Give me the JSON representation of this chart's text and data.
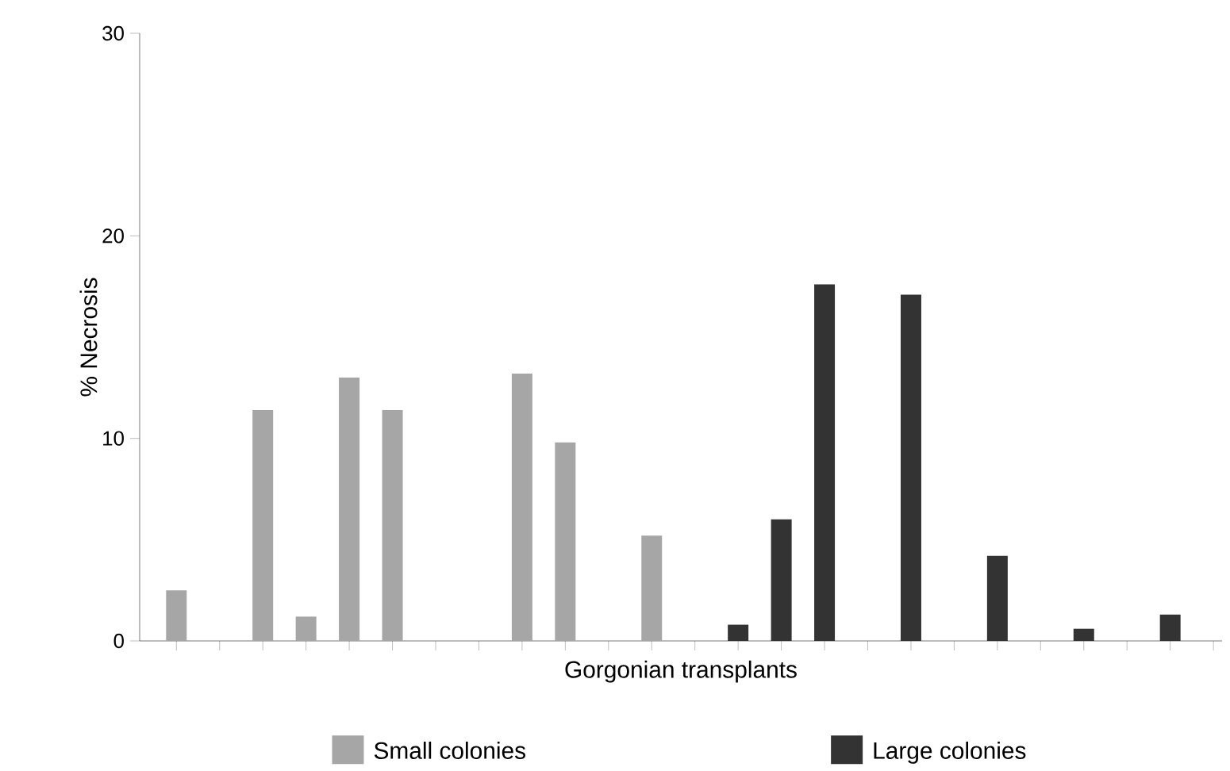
{
  "chart_data": {
    "type": "bar",
    "xlabel": "Gorgonian transplants",
    "ylabel": "% Necrosis",
    "categories": [
      null,
      null,
      null,
      null,
      null,
      null,
      null,
      null,
      null,
      null,
      null,
      null,
      null,
      null,
      null,
      null,
      null,
      null,
      null,
      null,
      null,
      null,
      null,
      null,
      null
    ],
    "series": [
      {
        "name": "Small colonies",
        "color": "#a6a6a6",
        "values": [
          2.5,
          0,
          11.4,
          1.2,
          13,
          11.4,
          0,
          0,
          13.2,
          9.8,
          0,
          5.2,
          null,
          null,
          null,
          null,
          null,
          null,
          null,
          null,
          null,
          null,
          null,
          null,
          null
        ]
      },
      {
        "name": "Large colonies",
        "color": "#333333",
        "values": [
          null,
          null,
          null,
          null,
          null,
          null,
          null,
          null,
          null,
          null,
          null,
          null,
          0,
          0.8,
          6,
          17.6,
          0,
          17.1,
          0,
          4.2,
          0,
          0.6,
          0,
          1.3,
          0
        ]
      }
    ],
    "ylim": [
      0,
      30
    ],
    "yticks": [
      0,
      10,
      20,
      30
    ],
    "tick_labels": "y",
    "legend": "bottom"
  }
}
